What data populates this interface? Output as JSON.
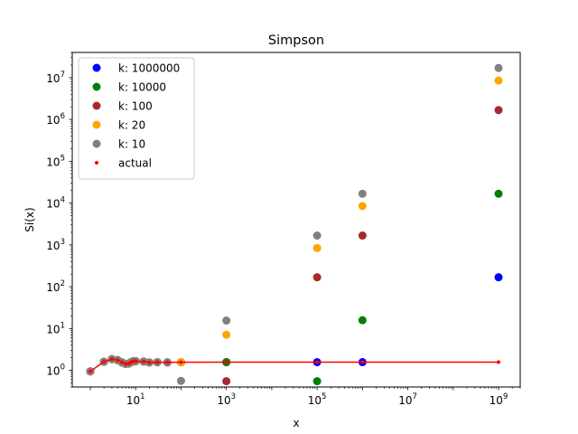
{
  "chart_data": {
    "type": "scatter",
    "title": "Simpson",
    "xlabel": "x",
    "ylabel": "Si(x)",
    "xscale": "log",
    "yscale": "log",
    "xlim": [
      0.4,
      3000000000
    ],
    "ylim": [
      0.4,
      40000000
    ],
    "x_tick_labels": [
      "10^1",
      "10^3",
      "10^5",
      "10^7",
      "10^9"
    ],
    "y_tick_labels": [
      "10^0",
      "10^1",
      "10^2",
      "10^3",
      "10^4",
      "10^5",
      "10^6",
      "10^7"
    ],
    "grid": false,
    "legend_position": "top-left",
    "series": [
      {
        "name": "k: 1000000",
        "color": "#0000ff",
        "points": [
          {
            "x": 1,
            "y": 0.946
          },
          {
            "x": 2,
            "y": 1.605
          },
          {
            "x": 3,
            "y": 1.849
          },
          {
            "x": 4,
            "y": 1.758
          },
          {
            "x": 5,
            "y": 1.55
          },
          {
            "x": 6,
            "y": 1.425
          },
          {
            "x": 7,
            "y": 1.455
          },
          {
            "x": 8,
            "y": 1.574
          },
          {
            "x": 9,
            "y": 1.665
          },
          {
            "x": 10,
            "y": 1.658
          },
          {
            "x": 15,
            "y": 1.618
          },
          {
            "x": 20,
            "y": 1.548
          },
          {
            "x": 30,
            "y": 1.567
          },
          {
            "x": 50,
            "y": 1.552
          },
          {
            "x": 100,
            "y": 1.562
          },
          {
            "x": 1000,
            "y": 1.571
          },
          {
            "x": 100000,
            "y": 1.571
          },
          {
            "x": 1000000,
            "y": 1.571
          },
          {
            "x": 1000000000,
            "y": 168
          }
        ]
      },
      {
        "name": "k: 10000",
        "color": "#008000",
        "points": [
          {
            "x": 1,
            "y": 0.946
          },
          {
            "x": 2,
            "y": 1.605
          },
          {
            "x": 3,
            "y": 1.849
          },
          {
            "x": 4,
            "y": 1.758
          },
          {
            "x": 5,
            "y": 1.55
          },
          {
            "x": 6,
            "y": 1.425
          },
          {
            "x": 7,
            "y": 1.455
          },
          {
            "x": 8,
            "y": 1.574
          },
          {
            "x": 9,
            "y": 1.665
          },
          {
            "x": 10,
            "y": 1.658
          },
          {
            "x": 15,
            "y": 1.618
          },
          {
            "x": 20,
            "y": 1.548
          },
          {
            "x": 30,
            "y": 1.567
          },
          {
            "x": 50,
            "y": 1.552
          },
          {
            "x": 100,
            "y": 1.562
          },
          {
            "x": 1000,
            "y": 1.571
          },
          {
            "x": 100000,
            "y": 0.55
          },
          {
            "x": 1000000,
            "y": 15.8
          },
          {
            "x": 1000000000,
            "y": 16700
          }
        ]
      },
      {
        "name": "k: 100",
        "color": "#a52a2a",
        "points": [
          {
            "x": 1,
            "y": 0.946
          },
          {
            "x": 2,
            "y": 1.605
          },
          {
            "x": 3,
            "y": 1.849
          },
          {
            "x": 4,
            "y": 1.758
          },
          {
            "x": 5,
            "y": 1.55
          },
          {
            "x": 6,
            "y": 1.425
          },
          {
            "x": 7,
            "y": 1.455
          },
          {
            "x": 8,
            "y": 1.574
          },
          {
            "x": 9,
            "y": 1.665
          },
          {
            "x": 10,
            "y": 1.658
          },
          {
            "x": 15,
            "y": 1.618
          },
          {
            "x": 20,
            "y": 1.548
          },
          {
            "x": 30,
            "y": 1.567
          },
          {
            "x": 50,
            "y": 1.552
          },
          {
            "x": 100,
            "y": 1.562
          },
          {
            "x": 1000,
            "y": 0.55
          },
          {
            "x": 100000,
            "y": 168
          },
          {
            "x": 1000000,
            "y": 1670
          },
          {
            "x": 1000000000,
            "y": 1670000
          }
        ]
      },
      {
        "name": "k: 20",
        "color": "#ffa500",
        "points": [
          {
            "x": 1,
            "y": 0.946
          },
          {
            "x": 2,
            "y": 1.605
          },
          {
            "x": 3,
            "y": 1.849
          },
          {
            "x": 4,
            "y": 1.758
          },
          {
            "x": 5,
            "y": 1.55
          },
          {
            "x": 6,
            "y": 1.425
          },
          {
            "x": 7,
            "y": 1.455
          },
          {
            "x": 8,
            "y": 1.574
          },
          {
            "x": 9,
            "y": 1.665
          },
          {
            "x": 10,
            "y": 1.658
          },
          {
            "x": 15,
            "y": 1.618
          },
          {
            "x": 20,
            "y": 1.548
          },
          {
            "x": 30,
            "y": 1.567
          },
          {
            "x": 50,
            "y": 1.552
          },
          {
            "x": 100,
            "y": 1.562
          },
          {
            "x": 1000,
            "y": 7.1
          },
          {
            "x": 100000,
            "y": 840
          },
          {
            "x": 1000000,
            "y": 8500
          },
          {
            "x": 1000000000,
            "y": 8500000
          }
        ]
      },
      {
        "name": "k: 10",
        "color": "#808080",
        "points": [
          {
            "x": 1,
            "y": 0.946
          },
          {
            "x": 2,
            "y": 1.605
          },
          {
            "x": 3,
            "y": 1.849
          },
          {
            "x": 4,
            "y": 1.758
          },
          {
            "x": 5,
            "y": 1.55
          },
          {
            "x": 6,
            "y": 1.425
          },
          {
            "x": 7,
            "y": 1.455
          },
          {
            "x": 8,
            "y": 1.574
          },
          {
            "x": 9,
            "y": 1.665
          },
          {
            "x": 10,
            "y": 1.658
          },
          {
            "x": 15,
            "y": 1.618
          },
          {
            "x": 20,
            "y": 1.548
          },
          {
            "x": 30,
            "y": 1.567
          },
          {
            "x": 50,
            "y": 1.552
          },
          {
            "x": 100,
            "y": 0.56
          },
          {
            "x": 1000,
            "y": 15.5
          },
          {
            "x": 100000,
            "y": 1670
          },
          {
            "x": 1000000,
            "y": 16700
          },
          {
            "x": 1000000000,
            "y": 17000000
          }
        ]
      },
      {
        "name": "actual",
        "color": "#ff0000",
        "style": "line+small-dots",
        "points": [
          {
            "x": 1,
            "y": 0.946
          },
          {
            "x": 2,
            "y": 1.605
          },
          {
            "x": 3,
            "y": 1.849
          },
          {
            "x": 4,
            "y": 1.758
          },
          {
            "x": 5,
            "y": 1.55
          },
          {
            "x": 6,
            "y": 1.425
          },
          {
            "x": 7,
            "y": 1.455
          },
          {
            "x": 8,
            "y": 1.574
          },
          {
            "x": 9,
            "y": 1.665
          },
          {
            "x": 10,
            "y": 1.658
          },
          {
            "x": 15,
            "y": 1.618
          },
          {
            "x": 20,
            "y": 1.548
          },
          {
            "x": 30,
            "y": 1.567
          },
          {
            "x": 50,
            "y": 1.552
          },
          {
            "x": 100,
            "y": 1.562
          },
          {
            "x": 1000,
            "y": 1.571
          },
          {
            "x": 100000,
            "y": 1.571
          },
          {
            "x": 1000000,
            "y": 1.571
          },
          {
            "x": 1000000000,
            "y": 1.571
          }
        ]
      }
    ]
  }
}
